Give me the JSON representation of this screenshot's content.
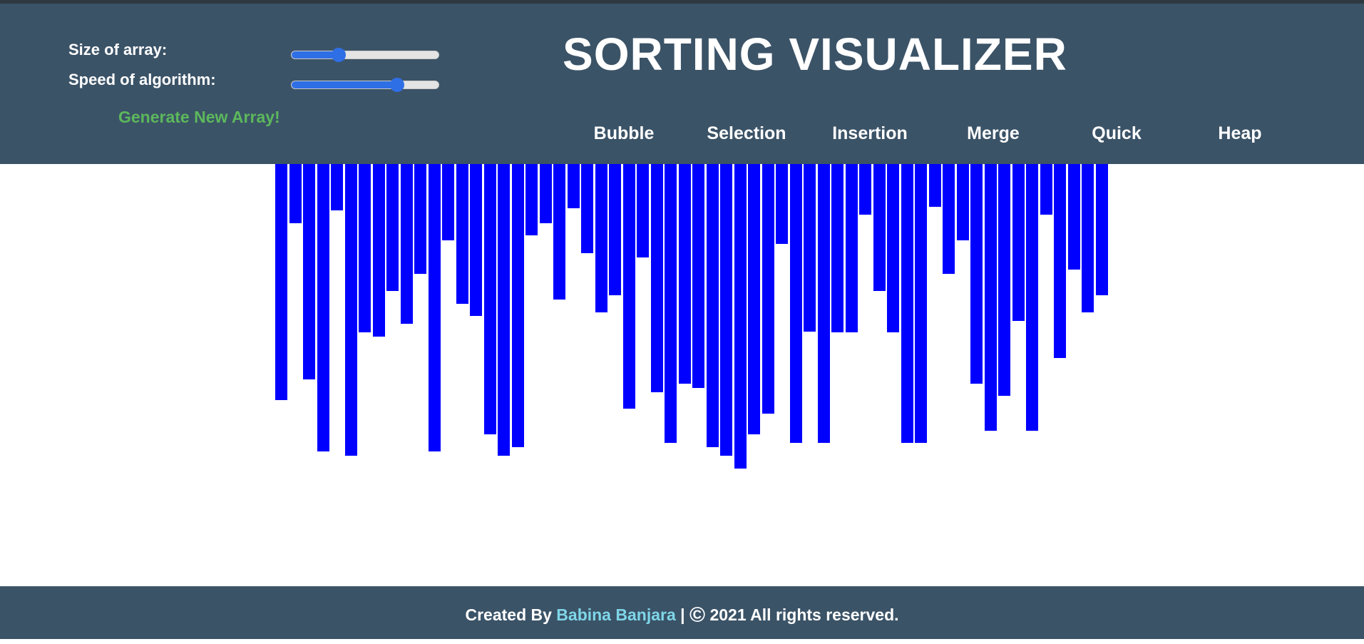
{
  "header": {
    "title": "SORTING VISUALIZER",
    "size_label": "Size of array:",
    "speed_label": "Speed of algorithm:",
    "size_value": 0.32,
    "speed_value": 0.72,
    "generate_label": "Generate New Array!",
    "algorithms": [
      "Bubble",
      "Selection",
      "Insertion",
      "Merge",
      "Quick",
      "Heap"
    ]
  },
  "array": {
    "bar_color": "#0000ff",
    "values": [
      331,
      83,
      302,
      403,
      65,
      409,
      236,
      242,
      178,
      224,
      154,
      403,
      107,
      196,
      213,
      379,
      409,
      397,
      100,
      83,
      190,
      62,
      125,
      208,
      184,
      343,
      131,
      320,
      391,
      308,
      314,
      397,
      409,
      427,
      379,
      350,
      112,
      391,
      235,
      391,
      236,
      236,
      71,
      178,
      236,
      391,
      391,
      60,
      154,
      107,
      308,
      374,
      325,
      220,
      374,
      71,
      272,
      148,
      208,
      184
    ]
  },
  "footer": {
    "prefix": "Created By ",
    "author": "Babina Banjara",
    "separator": " | ",
    "copyright_symbol": "©",
    "suffix": " 2021 All rights reserved."
  },
  "colors": {
    "header_bg": "#3b5367",
    "accent_green": "#5cb85c",
    "author_link": "#7fd6e8",
    "slider_blue": "#2f6fe6"
  }
}
